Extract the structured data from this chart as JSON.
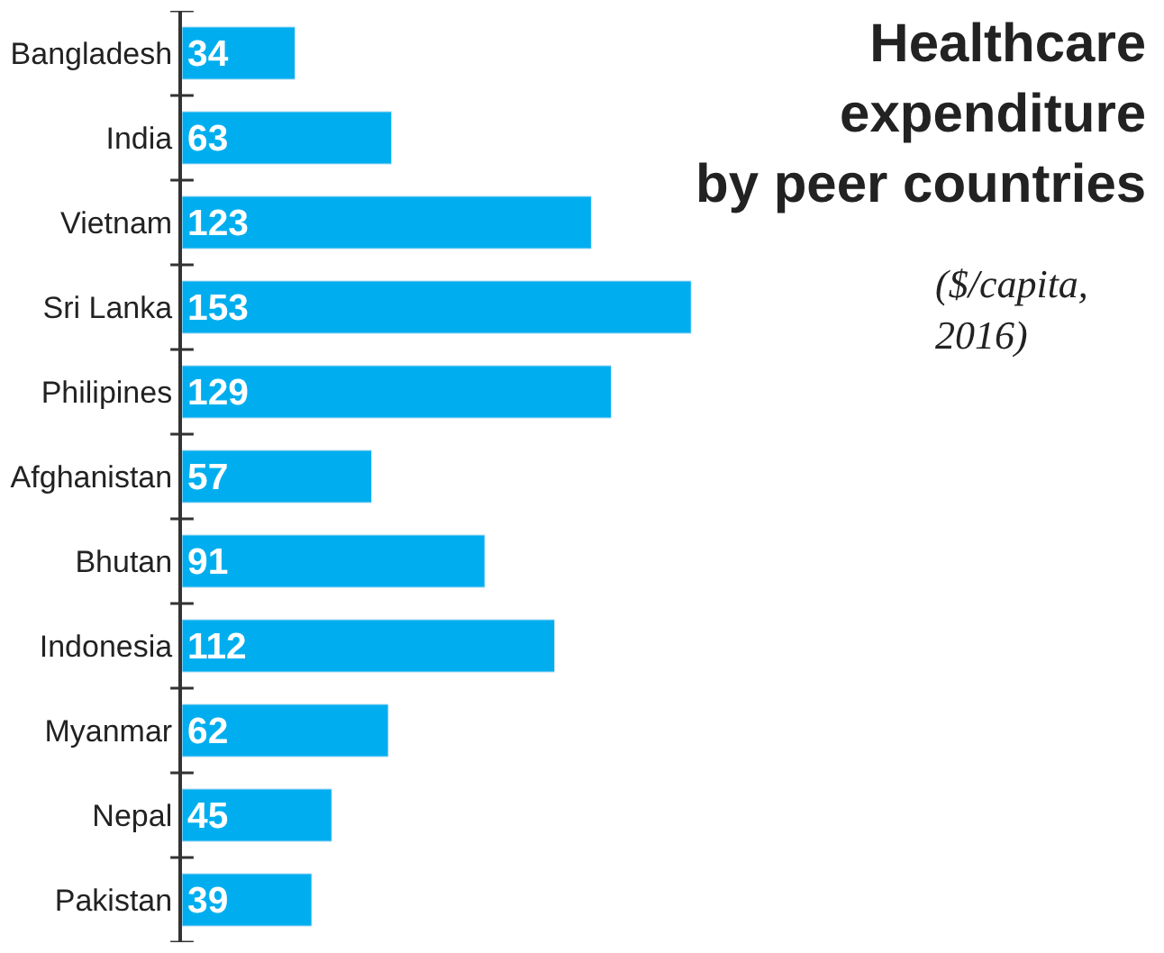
{
  "chart_data": {
    "type": "bar",
    "orientation": "horizontal",
    "title": "Healthcare expenditure by peer countries",
    "subtitle": "($/capita, 2016)",
    "categories": [
      "Bangladesh",
      "India",
      "Vietnam",
      "Sri Lanka",
      "Philipines",
      "Afghanistan",
      "Bhutan",
      "Indonesia",
      "Myanmar",
      "Nepal",
      "Pakistan"
    ],
    "values": [
      34,
      63,
      123,
      153,
      129,
      57,
      91,
      112,
      62,
      45,
      39
    ],
    "color": "#00aeef",
    "data_labels": true,
    "legend": false
  }
}
